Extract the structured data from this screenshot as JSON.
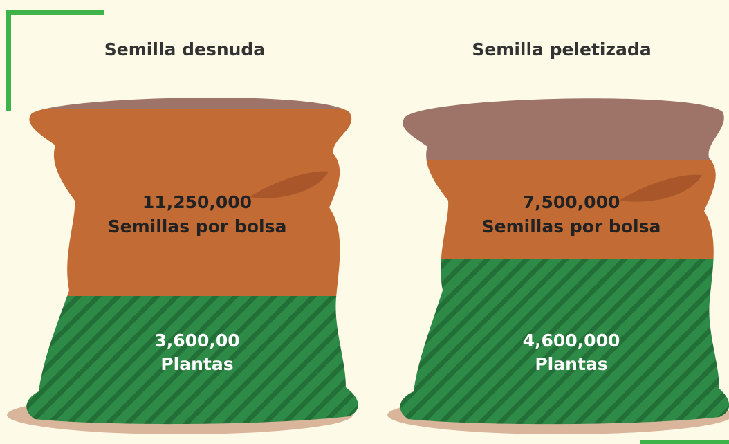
{
  "bags": [
    {
      "title": "Semilla desnuda",
      "seeds": "11,250,000",
      "seeds_label": "Semillas por bolsa",
      "plants": "3,600,00",
      "plants_label": "Plantas"
    },
    {
      "title": "Semilla peletizada",
      "seeds": "7,500,000",
      "seeds_label": "Semillas por bolsa",
      "plants": "4,600,000",
      "plants_label": "Plantas"
    }
  ]
}
